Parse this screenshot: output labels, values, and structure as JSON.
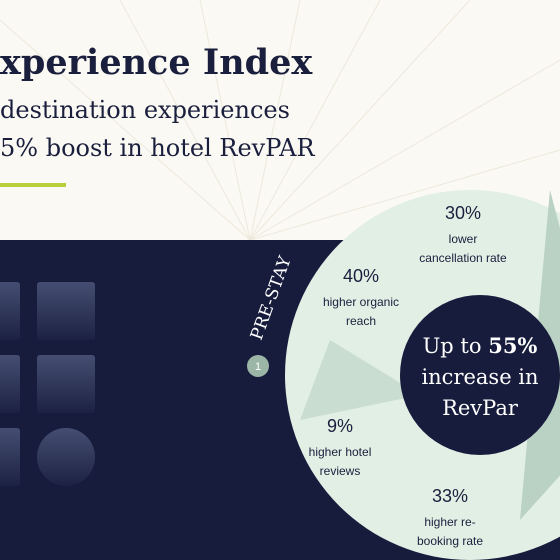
{
  "header": {
    "title": "xperience Index",
    "subtitle": [
      "destination experiences",
      "5% boost in hotel RevPAR"
    ]
  },
  "stage": {
    "label": "PRE-STAY",
    "number": "1"
  },
  "center": {
    "prefix": "Up to",
    "highlight": "55%",
    "lines": [
      "increase in",
      "RevPar"
    ]
  },
  "stats": [
    {
      "value": "30%",
      "lines": [
        "lower",
        "cancellation rate"
      ]
    },
    {
      "value": "40%",
      "lines": [
        "higher organic",
        "reach"
      ]
    },
    {
      "value": "9%",
      "lines": [
        "higher hotel",
        "reviews"
      ]
    },
    {
      "value": "33%",
      "lines": [
        "higher re-",
        "booking rate"
      ]
    }
  ]
}
